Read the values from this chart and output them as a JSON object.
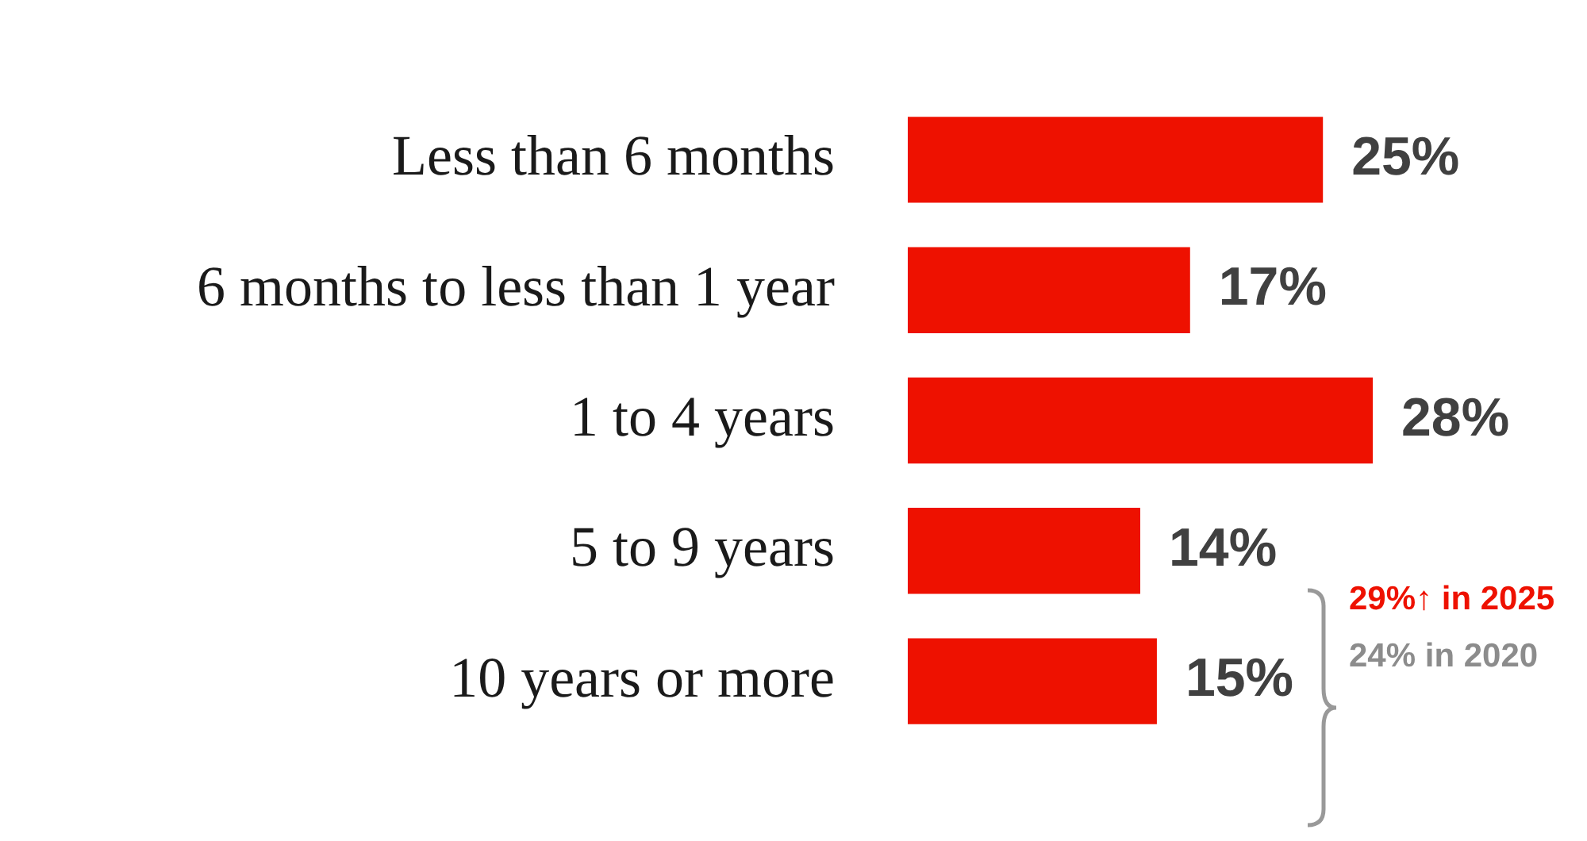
{
  "chart_data": {
    "type": "bar",
    "orientation": "horizontal",
    "categories": [
      "Less than 6 months",
      "6 months to less than 1 year",
      "1 to 4 years",
      "5 to 9 years",
      "10 years or more"
    ],
    "values": [
      25,
      17,
      28,
      14,
      15
    ],
    "value_labels": [
      "25%",
      "17%",
      "28%",
      "14%",
      "15%"
    ],
    "color": "#ee1100",
    "grid": false,
    "legend": false,
    "tick_labels": "y",
    "annotations": [
      "29%↑ in 2025",
      "24% in 2020"
    ]
  }
}
